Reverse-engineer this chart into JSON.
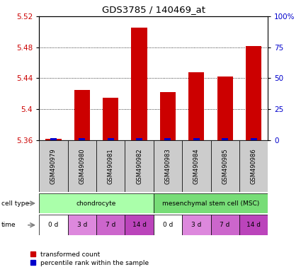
{
  "title": "GDS3785 / 140469_at",
  "samples": [
    "GSM490979",
    "GSM490980",
    "GSM490981",
    "GSM490982",
    "GSM490983",
    "GSM490984",
    "GSM490985",
    "GSM490986"
  ],
  "red_values": [
    5.362,
    5.425,
    5.415,
    5.505,
    5.422,
    5.448,
    5.442,
    5.482
  ],
  "blue_values": [
    1,
    1,
    1,
    1,
    1,
    2,
    2,
    2
  ],
  "ylim": [
    5.36,
    5.52
  ],
  "yticks": [
    5.36,
    5.4,
    5.44,
    5.48,
    5.52
  ],
  "ytick_labels": [
    "5.36",
    "5.4",
    "5.44",
    "5.48",
    "5.52"
  ],
  "right_yticks": [
    0,
    25,
    50,
    75,
    100
  ],
  "right_ytick_labels": [
    "0",
    "25",
    "50",
    "75",
    "100%"
  ],
  "right_ylim": [
    0,
    100
  ],
  "cell_types": [
    {
      "label": "chondrocyte",
      "start": 0,
      "end": 4,
      "color": "#aaffaa"
    },
    {
      "label": "mesenchymal stem cell (MSC)",
      "start": 4,
      "end": 8,
      "color": "#77dd77"
    }
  ],
  "time_labels": [
    "0 d",
    "3 d",
    "7 d",
    "14 d",
    "0 d",
    "3 d",
    "7 d",
    "14 d"
  ],
  "time_colors": [
    "#ffffff",
    "#dd88dd",
    "#cc66cc",
    "#bb44bb",
    "#ffffff",
    "#dd88dd",
    "#cc66cc",
    "#bb44bb"
  ],
  "bar_color": "#cc0000",
  "blue_color": "#0000cc",
  "tick_label_color_left": "#cc0000",
  "tick_label_color_right": "#0000cc",
  "plot_bg": "#ffffff",
  "xlabel_bg": "#cccccc",
  "legend_red_label": "transformed count",
  "legend_blue_label": "percentile rank within the sample"
}
